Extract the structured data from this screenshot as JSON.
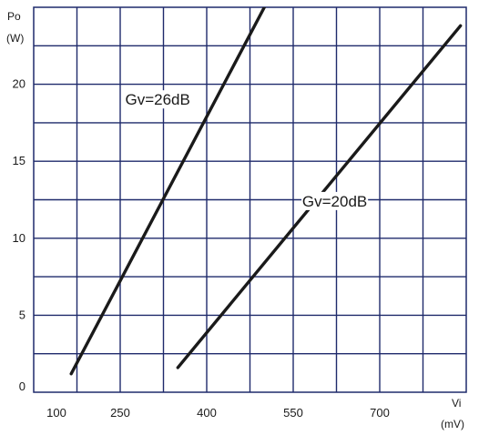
{
  "chart_data": {
    "type": "line",
    "title": "",
    "xlabel": "Vi",
    "xunit": "(mV)",
    "ylabel": "Po",
    "yunit": "(W)",
    "xlim": [
      100,
      850
    ],
    "ylim": [
      0,
      25
    ],
    "x_ticks": [
      100,
      250,
      400,
      550,
      700
    ],
    "x_tick_labels": [
      "100",
      "250",
      "400",
      "550",
      "700"
    ],
    "y_ticks": [
      0,
      5,
      10,
      15,
      20
    ],
    "y_tick_labels": [
      "0",
      "5",
      "10",
      "15",
      "20"
    ],
    "x_grid": [
      175,
      250,
      325,
      400,
      475,
      550,
      625,
      700,
      775
    ],
    "y_grid": [
      2.5,
      5,
      7.5,
      10,
      12.5,
      15,
      17.5,
      20,
      22.5
    ],
    "grid": true,
    "line_color": "#1a1a1a",
    "grid_color": "#1f2a6b",
    "series": [
      {
        "name": "Gv=26dB",
        "x": [
          165,
          500
        ],
        "y": [
          1.2,
          25
        ]
      },
      {
        "name": "Gv=20dB",
        "x": [
          350,
          840
        ],
        "y": [
          1.6,
          23.8
        ]
      }
    ],
    "annotations": [
      {
        "text": "Gv=26dB",
        "x": 315,
        "y": 18.9
      },
      {
        "text": "Gv=20dB",
        "x": 622,
        "y": 12.3
      }
    ]
  }
}
